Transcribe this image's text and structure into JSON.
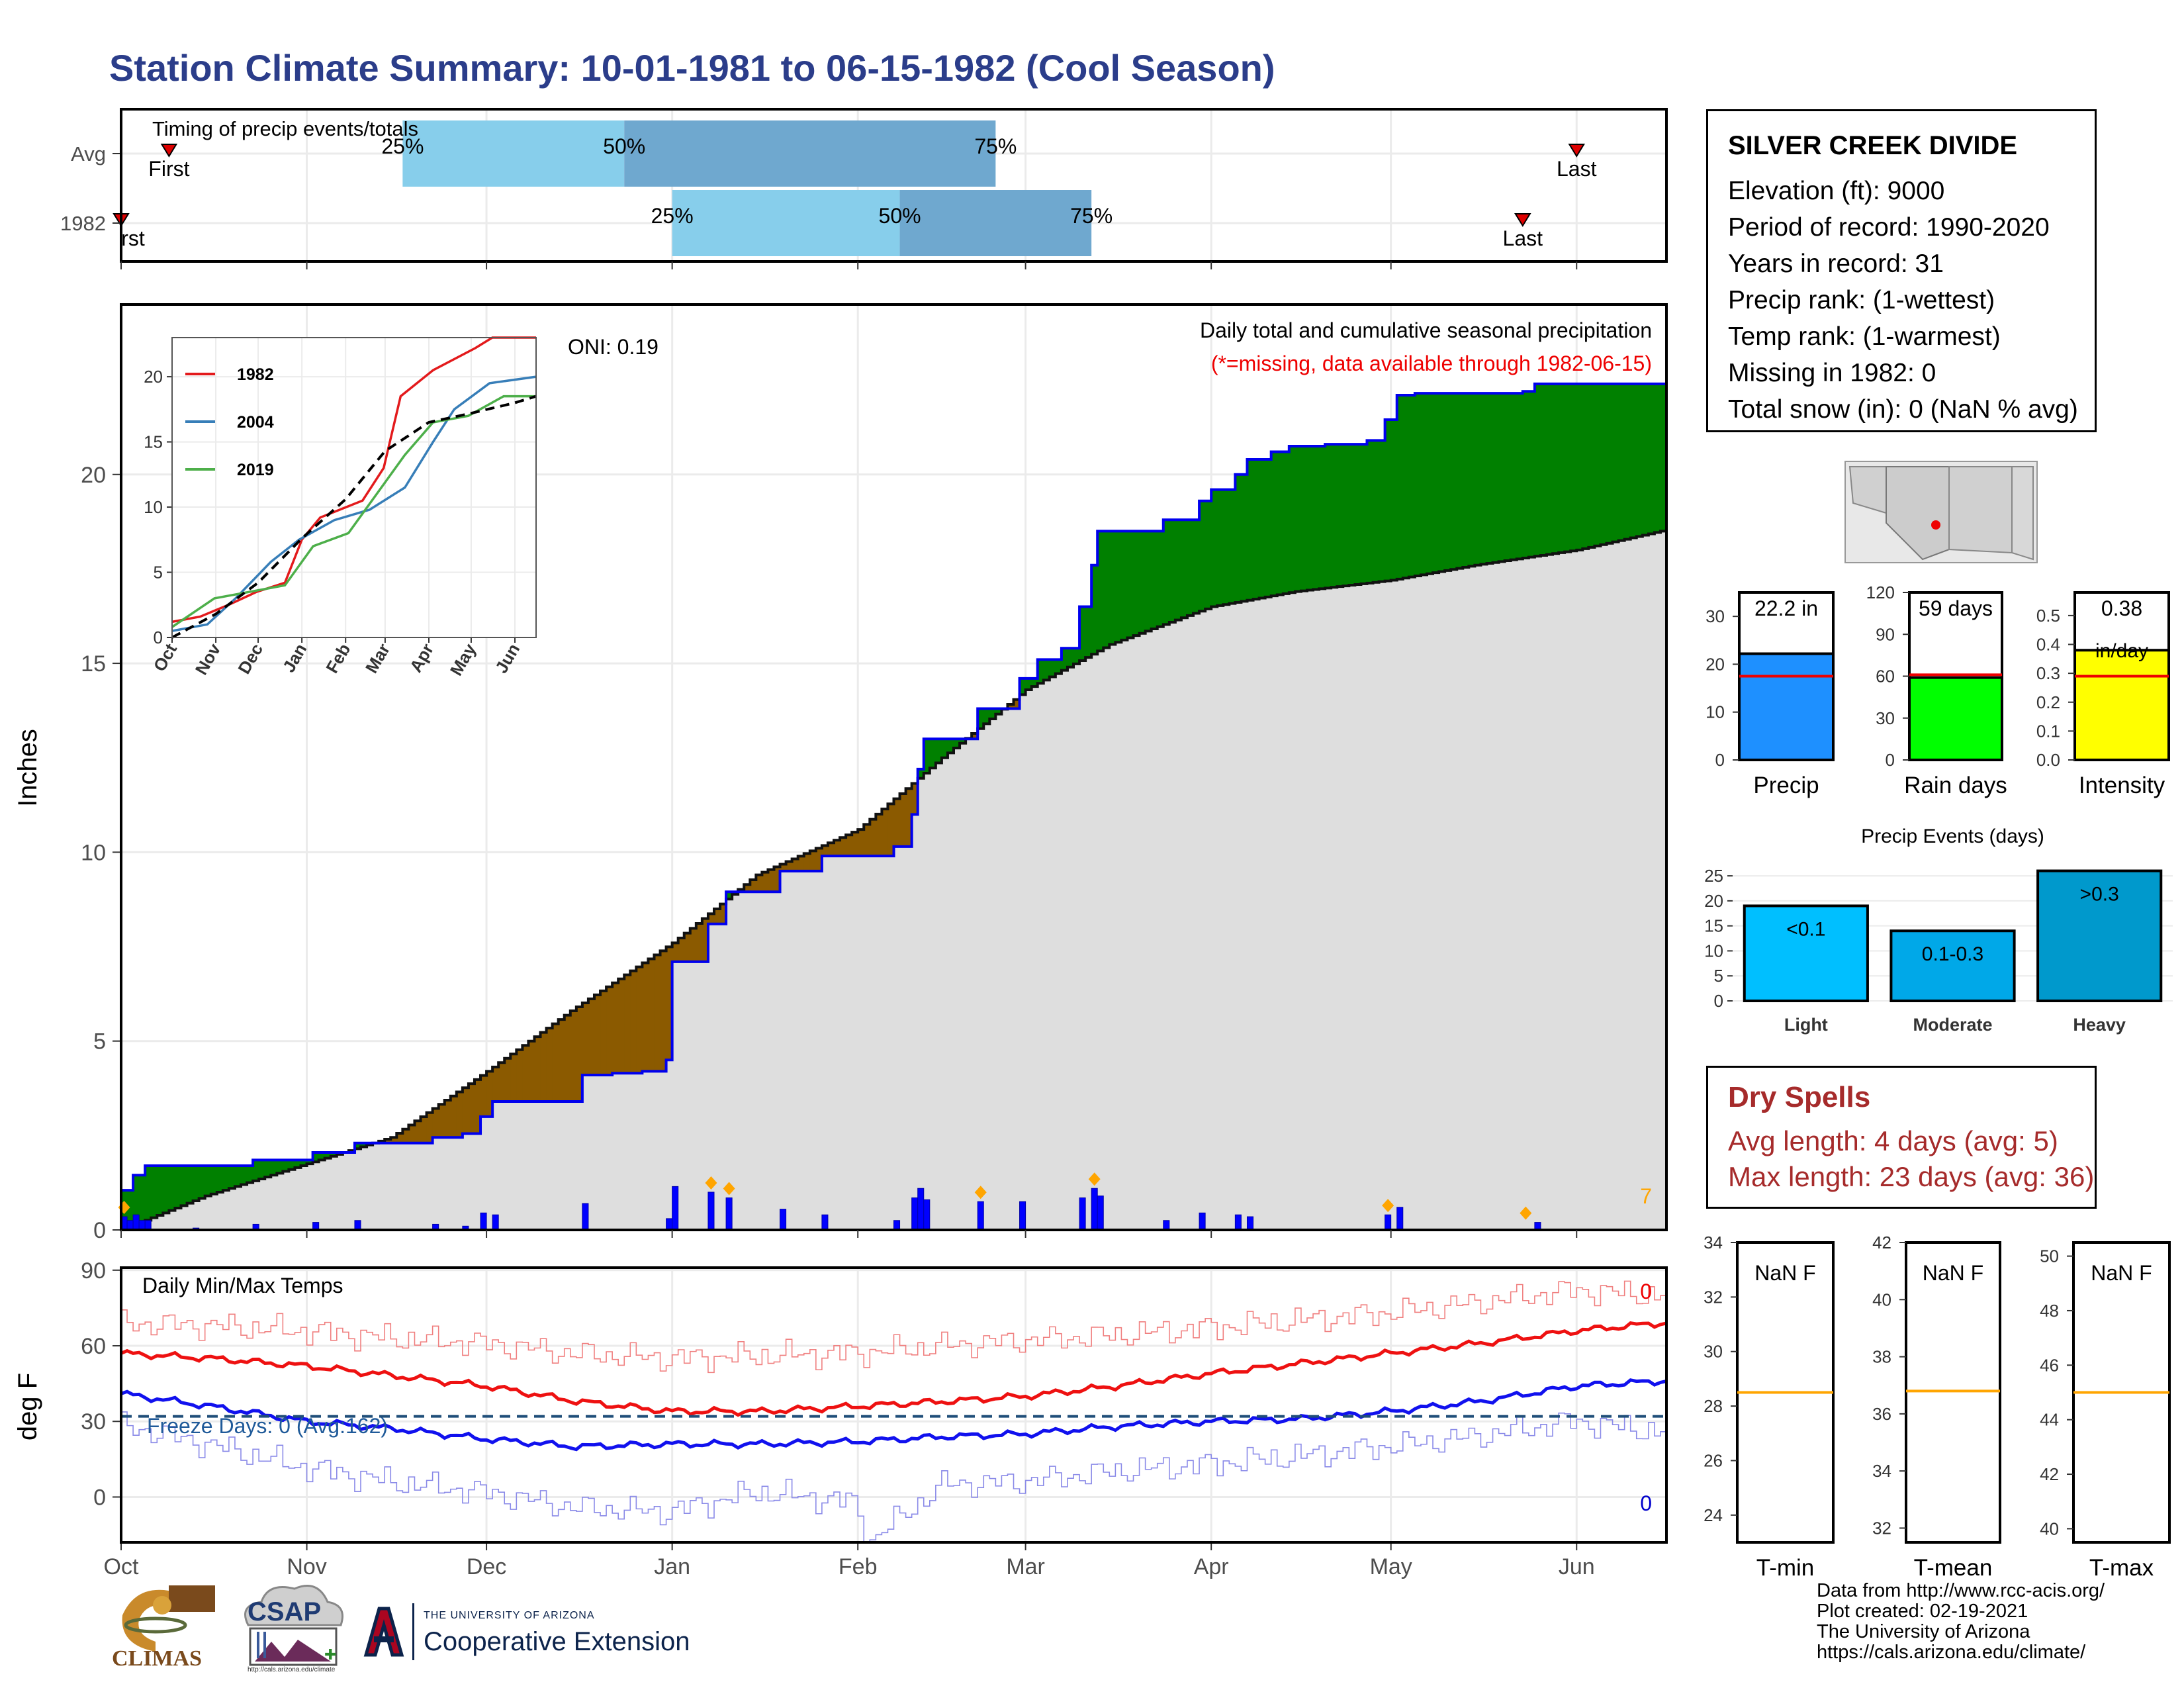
{
  "title": "Station Climate Summary: 10-01-1981 to 06-15-1982 (Cool Season)",
  "station": {
    "name": "SILVER CREEK DIVIDE",
    "lines": [
      "Elevation (ft): 9000",
      "Period of record: 1990-2020",
      "Years in record: 31",
      "Precip rank:  (1-wettest)",
      "Temp rank:  (1-warmest)",
      "Missing in 1982: 0",
      "Total snow (in): 0 (NaN % avg)"
    ]
  },
  "dry_spells": {
    "heading": "Dry Spells",
    "avg_length": "Avg length: 4 days (avg: 5)",
    "max_length": "Max length: 23 days (avg: 36)"
  },
  "credits": [
    "Data from http://www.rcc-acis.org/",
    "Plot created: 02-19-2021",
    "The University of Arizona",
    "https://cals.arizona.edu/climate/"
  ],
  "logos": {
    "climas": "CLIMAS",
    "csap": "CSAP",
    "csap_url": "http://cals.arizona.edu/climate",
    "ua_small": "THE UNIVERSITY OF ARIZONA",
    "ua_big": "Cooperative Extension"
  },
  "colors": {
    "title": "#2b3d8a",
    "precip_1982": "#0000ee",
    "surplus": "#008000",
    "deficit": "#8b5a00",
    "normal_fill": "#dedede",
    "tmax": "#ee1111",
    "tmin": "#1111ee",
    "quartile_light": "#87ceeb",
    "quartile_dark": "#6fa8cf"
  },
  "chart_data": [
    {
      "id": "timing",
      "type": "bar",
      "title": "Timing of precip events/totals",
      "rows": [
        {
          "label": "Avg",
          "first": "1981-10-09",
          "q25": "1981-11-17",
          "q50": "1981-12-24",
          "q75": "1982-02-24",
          "last": "1982-06-01"
        },
        {
          "label": "1982",
          "first": "1981-10-01",
          "q25": "1982-01-01",
          "q50": "1982-02-08",
          "q75": "1982-03-12",
          "last": "1982-05-23"
        }
      ],
      "marker_labels": {
        "first": "First",
        "first_clipped": "rst",
        "last": "Last",
        "q25": "25%",
        "q50": "50%",
        "q75": "75%"
      }
    },
    {
      "id": "cumulative_precip",
      "type": "area",
      "title": "Daily total and cumulative seasonal precipitation",
      "subtitle": "(*=missing, data available through 1982-06-15)",
      "oni": "ONI: 0.19",
      "ylabel": "Inches",
      "ylim": [
        0,
        24.5
      ],
      "yticks": [
        0,
        5,
        10,
        15,
        20
      ],
      "corner_count": "7",
      "cumulative_1982": [
        [
          "1981-10-01",
          1.05
        ],
        [
          "1981-10-03",
          1.45
        ],
        [
          "1981-10-05",
          1.7
        ],
        [
          "1981-10-23",
          1.85
        ],
        [
          "1981-11-02",
          2.05
        ],
        [
          "1981-11-09",
          2.3
        ],
        [
          "1981-11-22",
          2.45
        ],
        [
          "1981-11-27",
          2.55
        ],
        [
          "1981-11-30",
          3.0
        ],
        [
          "1981-12-02",
          3.4
        ],
        [
          "1981-12-17",
          4.1
        ],
        [
          "1981-12-22",
          4.15
        ],
        [
          "1981-12-27",
          4.2
        ],
        [
          "1981-12-31",
          4.5
        ],
        [
          "1982-01-01",
          7.1
        ],
        [
          "1982-01-07",
          8.1
        ],
        [
          "1982-01-10",
          8.95
        ],
        [
          "1982-01-19",
          9.5
        ],
        [
          "1982-01-26",
          9.9
        ],
        [
          "1982-02-07",
          10.15
        ],
        [
          "1982-02-10",
          11.0
        ],
        [
          "1982-02-11",
          12.2
        ],
        [
          "1982-02-12",
          13.0
        ],
        [
          "1982-02-21",
          13.8
        ],
        [
          "1982-02-28",
          14.6
        ],
        [
          "1982-03-03",
          15.1
        ],
        [
          "1982-03-07",
          15.4
        ],
        [
          "1982-03-10",
          16.5
        ],
        [
          "1982-03-12",
          17.6
        ],
        [
          "1982-03-13",
          18.5
        ],
        [
          "1982-03-24",
          18.8
        ],
        [
          "1982-03-30",
          19.3
        ],
        [
          "1982-04-01",
          19.6
        ],
        [
          "1982-04-05",
          20.0
        ],
        [
          "1982-04-07",
          20.4
        ],
        [
          "1982-04-11",
          20.6
        ],
        [
          "1982-04-14",
          20.75
        ],
        [
          "1982-04-20",
          20.8
        ],
        [
          "1982-04-27",
          20.9
        ],
        [
          "1982-04-30",
          21.45
        ],
        [
          "1982-05-02",
          22.1
        ],
        [
          "1982-05-05",
          22.15
        ],
        [
          "1982-05-23",
          22.2
        ],
        [
          "1982-05-25",
          22.4
        ],
        [
          "1982-06-15",
          22.4
        ]
      ],
      "cumulative_normal": [
        [
          "1981-10-01",
          0.0
        ],
        [
          "1981-10-15",
          0.9
        ],
        [
          "1981-11-01",
          1.75
        ],
        [
          "1981-11-15",
          2.45
        ],
        [
          "1981-12-01",
          4.2
        ],
        [
          "1981-12-15",
          5.8
        ],
        [
          "1982-01-01",
          7.6
        ],
        [
          "1982-01-15",
          9.4
        ],
        [
          "1982-02-01",
          10.6
        ],
        [
          "1982-02-15",
          12.5
        ],
        [
          "1982-03-01",
          14.3
        ],
        [
          "1982-03-15",
          15.5
        ],
        [
          "1982-04-01",
          16.5
        ],
        [
          "1982-04-15",
          16.9
        ],
        [
          "1982-05-01",
          17.2
        ],
        [
          "1982-05-15",
          17.6
        ],
        [
          "1982-06-01",
          18.0
        ],
        [
          "1982-06-15",
          18.5
        ]
      ],
      "daily_1982": [
        [
          "1981-10-01",
          0.35
        ],
        [
          "1981-10-02",
          0.25
        ],
        [
          "1981-10-03",
          0.4
        ],
        [
          "1981-10-04",
          0.25
        ],
        [
          "1981-10-05",
          0.25
        ],
        [
          "1981-10-13",
          0.05
        ],
        [
          "1981-10-23",
          0.15
        ],
        [
          "1981-11-02",
          0.2
        ],
        [
          "1981-11-09",
          0.25
        ],
        [
          "1981-11-22",
          0.15
        ],
        [
          "1981-11-27",
          0.1
        ],
        [
          "1981-11-30",
          0.45
        ],
        [
          "1981-12-02",
          0.4
        ],
        [
          "1981-12-17",
          0.7
        ],
        [
          "1981-12-31",
          0.3
        ],
        [
          "1982-01-01",
          1.15
        ],
        [
          "1982-01-07",
          1.0
        ],
        [
          "1982-01-10",
          0.85
        ],
        [
          "1982-01-19",
          0.55
        ],
        [
          "1982-01-26",
          0.4
        ],
        [
          "1982-02-07",
          0.25
        ],
        [
          "1982-02-10",
          0.85
        ],
        [
          "1982-02-11",
          1.1
        ],
        [
          "1982-02-12",
          0.8
        ],
        [
          "1982-02-21",
          0.75
        ],
        [
          "1982-02-28",
          0.75
        ],
        [
          "1982-03-10",
          0.85
        ],
        [
          "1982-03-12",
          1.1
        ],
        [
          "1982-03-13",
          0.9
        ],
        [
          "1982-03-24",
          0.25
        ],
        [
          "1982-03-30",
          0.45
        ],
        [
          "1982-04-05",
          0.4
        ],
        [
          "1982-04-07",
          0.35
        ],
        [
          "1982-04-30",
          0.4
        ],
        [
          "1982-05-02",
          0.6
        ],
        [
          "1982-05-25",
          0.2
        ]
      ],
      "daily_markers": [
        "1981-10-01",
        "1982-01-07",
        "1982-01-10",
        "1982-02-21",
        "1982-03-12",
        "1982-04-30",
        "1982-05-23"
      ]
    },
    {
      "id": "inset_cumulative",
      "type": "line",
      "xticks": [
        "Oct",
        "Nov",
        "Dec",
        "Jan",
        "Feb",
        "Mar",
        "Apr",
        "May",
        "Jun"
      ],
      "ylim": [
        0,
        23
      ],
      "yticks": [
        0,
        5,
        10,
        15,
        20
      ],
      "series": [
        {
          "name": "1982",
          "color": "#e31a1c",
          "points": [
            [
              0,
              1.2
            ],
            [
              20,
              1.6
            ],
            [
              40,
              2.5
            ],
            [
              60,
              3.5
            ],
            [
              80,
              4.2
            ],
            [
              92,
              7.5
            ],
            [
              105,
              9.2
            ],
            [
              135,
              10.5
            ],
            [
              150,
              13.0
            ],
            [
              162,
              18.5
            ],
            [
              185,
              20.5
            ],
            [
              215,
              22.2
            ],
            [
              227,
              23.0
            ],
            [
              258,
              23.0
            ]
          ]
        },
        {
          "name": "2004",
          "color": "#377eb8",
          "points": [
            [
              0,
              0.5
            ],
            [
              25,
              1.0
            ],
            [
              45,
              3.0
            ],
            [
              70,
              5.8
            ],
            [
              90,
              7.5
            ],
            [
              115,
              9.0
            ],
            [
              140,
              9.8
            ],
            [
              165,
              11.5
            ],
            [
              185,
              15.0
            ],
            [
              200,
              17.5
            ],
            [
              225,
              19.5
            ],
            [
              258,
              20.0
            ]
          ]
        },
        {
          "name": "2019",
          "color": "#4daf4a",
          "points": [
            [
              0,
              0.8
            ],
            [
              30,
              3.0
            ],
            [
              55,
              3.5
            ],
            [
              80,
              4.0
            ],
            [
              100,
              7.0
            ],
            [
              125,
              8.0
            ],
            [
              145,
              11.0
            ],
            [
              165,
              14.0
            ],
            [
              185,
              16.5
            ],
            [
              210,
              17.0
            ],
            [
              235,
              18.5
            ],
            [
              258,
              18.5
            ]
          ]
        },
        {
          "color": "#000000",
          "dashed": true,
          "points": [
            [
              0,
              0
            ],
            [
              31,
              1.8
            ],
            [
              61,
              4.2
            ],
            [
              92,
              7.6
            ],
            [
              123,
              10.6
            ],
            [
              151,
              14.3
            ],
            [
              182,
              16.5
            ],
            [
              212,
              17.2
            ],
            [
              243,
              18.0
            ],
            [
              258,
              18.5
            ]
          ]
        }
      ]
    },
    {
      "id": "temps",
      "type": "line",
      "title": "Daily Min/Max Temps",
      "ylabel": "deg F",
      "ylim": [
        -18,
        91
      ],
      "yticks": [
        0,
        30,
        60,
        90
      ],
      "xticks": [
        "Oct",
        "Nov",
        "Dec",
        "Jan",
        "Feb",
        "Mar",
        "Apr",
        "May",
        "Jun"
      ],
      "freeze_line": 32,
      "freeze_label": "Freeze Days: 0 (Avg:162)",
      "count_max": "0",
      "count_min": "0",
      "tmax_avg": [
        [
          0,
          57
        ],
        [
          15,
          55
        ],
        [
          31,
          52
        ],
        [
          46,
          48
        ],
        [
          61,
          44
        ],
        [
          76,
          38
        ],
        [
          92,
          34
        ],
        [
          107,
          34
        ],
        [
          123,
          36
        ],
        [
          138,
          38
        ],
        [
          151,
          40
        ],
        [
          166,
          44
        ],
        [
          182,
          49
        ],
        [
          197,
          53
        ],
        [
          212,
          57
        ],
        [
          227,
          61
        ],
        [
          243,
          66
        ],
        [
          257,
          69
        ]
      ],
      "tmin_avg": [
        [
          0,
          41
        ],
        [
          15,
          36
        ],
        [
          31,
          30
        ],
        [
          46,
          27
        ],
        [
          61,
          23
        ],
        [
          76,
          20
        ],
        [
          92,
          21
        ],
        [
          107,
          21
        ],
        [
          123,
          22
        ],
        [
          138,
          24
        ],
        [
          151,
          25
        ],
        [
          166,
          28
        ],
        [
          182,
          30
        ],
        [
          197,
          31
        ],
        [
          212,
          34
        ],
        [
          227,
          38
        ],
        [
          243,
          44
        ],
        [
          257,
          46
        ]
      ],
      "tmax_extreme": [
        [
          0,
          69
        ],
        [
          15,
          68
        ],
        [
          31,
          66
        ],
        [
          46,
          63
        ],
        [
          61,
          61
        ],
        [
          76,
          57
        ],
        [
          92,
          55
        ],
        [
          107,
          56
        ],
        [
          123,
          57
        ],
        [
          138,
          60
        ],
        [
          151,
          62
        ],
        [
          166,
          64
        ],
        [
          182,
          67
        ],
        [
          197,
          70
        ],
        [
          212,
          73
        ],
        [
          227,
          77
        ],
        [
          243,
          82
        ],
        [
          257,
          80
        ]
      ],
      "tmin_extreme": [
        [
          0,
          29
        ],
        [
          15,
          21
        ],
        [
          31,
          12
        ],
        [
          46,
          6
        ],
        [
          61,
          2
        ],
        [
          76,
          -4
        ],
        [
          92,
          -6
        ],
        [
          107,
          2
        ],
        [
          123,
          -2
        ],
        [
          126,
          -17
        ],
        [
          138,
          5
        ],
        [
          151,
          6
        ],
        [
          166,
          10
        ],
        [
          182,
          13
        ],
        [
          197,
          16
        ],
        [
          212,
          20
        ],
        [
          227,
          24
        ],
        [
          243,
          30
        ],
        [
          257,
          26
        ]
      ]
    },
    {
      "id": "summary_bars",
      "type": "bar",
      "charts": [
        {
          "label": "Precip",
          "value": 22.2,
          "value_label": "22.2 in",
          "avg": 17.5,
          "ylim": [
            0,
            35
          ],
          "yticks": [
            0,
            10,
            20,
            30
          ],
          "color": "#1e90ff"
        },
        {
          "label": "Rain days",
          "value": 59,
          "value_label": "59 days",
          "avg": 61,
          "ylim": [
            0,
            120
          ],
          "yticks": [
            0,
            30,
            60,
            90,
            120
          ],
          "color": "#00ff00"
        },
        {
          "label": "Intensity",
          "value": 0.38,
          "value_label": "0.38",
          "value_unit": "in/day",
          "avg": 0.29,
          "ylim": [
            0,
            0.58
          ],
          "yticks": [
            0.0,
            0.1,
            0.2,
            0.3,
            0.4,
            0.5
          ],
          "color": "#ffff00"
        }
      ]
    },
    {
      "id": "precip_events",
      "type": "bar",
      "title": "Precip Events (days)",
      "categories": [
        "Light",
        "Moderate",
        "Heavy"
      ],
      "bar_labels": [
        "<0.1",
        "0.1-0.3",
        ">0.3"
      ],
      "values": [
        19,
        14,
        26
      ],
      "colors": [
        "#00bfff",
        "#00a8e8",
        "#0099cc"
      ],
      "ylim": [
        0,
        27
      ],
      "yticks": [
        0,
        5,
        10,
        15,
        20,
        25
      ]
    },
    {
      "id": "temp_boxes",
      "type": "bar",
      "charts": [
        {
          "label": "T-min",
          "value_label": "NaN F",
          "avg": 28.5,
          "ylim": [
            23,
            34
          ],
          "yticks": [
            24,
            26,
            28,
            30,
            32,
            34
          ]
        },
        {
          "label": "T-mean",
          "value_label": "NaN F",
          "avg": 36.8,
          "ylim": [
            31.5,
            42
          ],
          "yticks": [
            32,
            34,
            36,
            38,
            40,
            42
          ]
        },
        {
          "label": "T-max",
          "value_label": "NaN F",
          "avg": 45.0,
          "ylim": [
            39.5,
            50.5
          ],
          "yticks": [
            40,
            42,
            44,
            46,
            48,
            50
          ]
        }
      ]
    }
  ]
}
